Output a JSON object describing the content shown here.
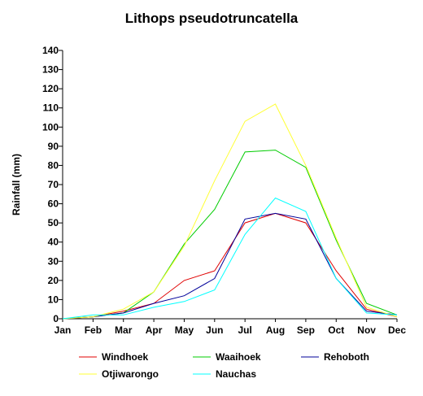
{
  "chart_data": {
    "type": "line",
    "title": "Lithops pseudotruncatella",
    "xlabel": "",
    "ylabel": "Rainfall (mm)",
    "ylim": [
      0,
      140
    ],
    "yticks": [
      0,
      10,
      20,
      30,
      40,
      50,
      60,
      70,
      80,
      90,
      100,
      110,
      120,
      130,
      140
    ],
    "grid": false,
    "legend_position": "bottom",
    "categories": [
      "Jan",
      "Feb",
      "Mar",
      "Apr",
      "May",
      "Jun",
      "Jul",
      "Aug",
      "Sep",
      "Oct",
      "Nov",
      "Dec"
    ],
    "series": [
      {
        "name": "Windhoek",
        "color": "#e00000",
        "values": [
          0,
          1,
          4,
          8,
          20,
          25,
          50,
          55,
          50,
          25,
          5,
          1
        ]
      },
      {
        "name": "Waaihoek",
        "color": "#00cc00",
        "values": [
          0,
          1,
          3,
          14,
          39,
          57,
          87,
          88,
          79,
          41,
          8,
          2
        ]
      },
      {
        "name": "Rehoboth",
        "color": "#000099",
        "values": [
          0,
          1,
          3,
          8,
          12,
          21,
          52,
          55,
          52,
          21,
          4,
          2
        ]
      },
      {
        "name": "Otjiwarongo",
        "color": "#ffff33",
        "values": [
          0,
          1,
          5,
          14,
          38,
          72,
          103,
          112,
          80,
          42,
          6,
          1
        ]
      },
      {
        "name": "Nauchas",
        "color": "#00ffff",
        "values": [
          0,
          2,
          2,
          6,
          9,
          15,
          44,
          63,
          56,
          21,
          3,
          2
        ]
      }
    ]
  }
}
